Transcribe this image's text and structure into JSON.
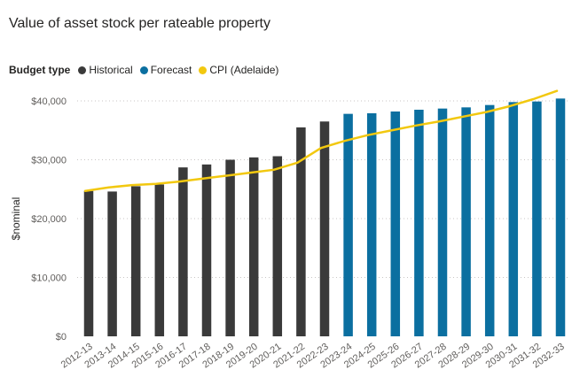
{
  "chart_data": {
    "type": "bar",
    "title": "Value of asset stock per rateable property",
    "xlabel": "",
    "ylabel": "$nominal",
    "ylim": [
      0,
      40000
    ],
    "yticks": [
      0,
      10000,
      20000,
      30000,
      40000
    ],
    "ytick_labels": [
      "$0",
      "$10,000",
      "$20,000",
      "$30,000",
      "$40,000"
    ],
    "grid": true,
    "legend": {
      "title": "Budget type",
      "placement": "top-left",
      "entries": [
        {
          "label": "Historical",
          "color": "#3a3a3a"
        },
        {
          "label": "Forecast",
          "color": "#0b6fa0"
        },
        {
          "label": "CPI (Adelaide)",
          "color": "#f2c80f"
        }
      ]
    },
    "categories": [
      "2012-13",
      "2013-14",
      "2014-15",
      "2015-16",
      "2016-17",
      "2017-18",
      "2018-19",
      "2019-20",
      "2020-21",
      "2021-22",
      "2022-23",
      "2023-24",
      "2024-25",
      "2025-26",
      "2026-27",
      "2027-28",
      "2028-29",
      "2029-30",
      "2030-31",
      "2031-32",
      "2032-33"
    ],
    "series": [
      {
        "name": "Historical",
        "kind": "bar",
        "color": "#3a3a3a",
        "values": [
          24700,
          24600,
          25500,
          25800,
          28700,
          29200,
          30000,
          30400,
          30600,
          35500,
          36500,
          null,
          null,
          null,
          null,
          null,
          null,
          null,
          null,
          null,
          null
        ]
      },
      {
        "name": "Forecast",
        "kind": "bar",
        "color": "#0b6fa0",
        "values": [
          null,
          null,
          null,
          null,
          null,
          null,
          null,
          null,
          null,
          null,
          null,
          37800,
          37900,
          38200,
          38500,
          38700,
          38900,
          39300,
          39800,
          39900,
          40400
        ]
      },
      {
        "name": "CPI (Adelaide)",
        "kind": "line",
        "color": "#f2c80f",
        "values": [
          24700,
          25300,
          25700,
          25900,
          26300,
          26800,
          27300,
          27800,
          28300,
          29500,
          32000,
          33200,
          34200,
          35000,
          35800,
          36500,
          37300,
          38100,
          39100,
          40300,
          41700
        ]
      }
    ]
  }
}
